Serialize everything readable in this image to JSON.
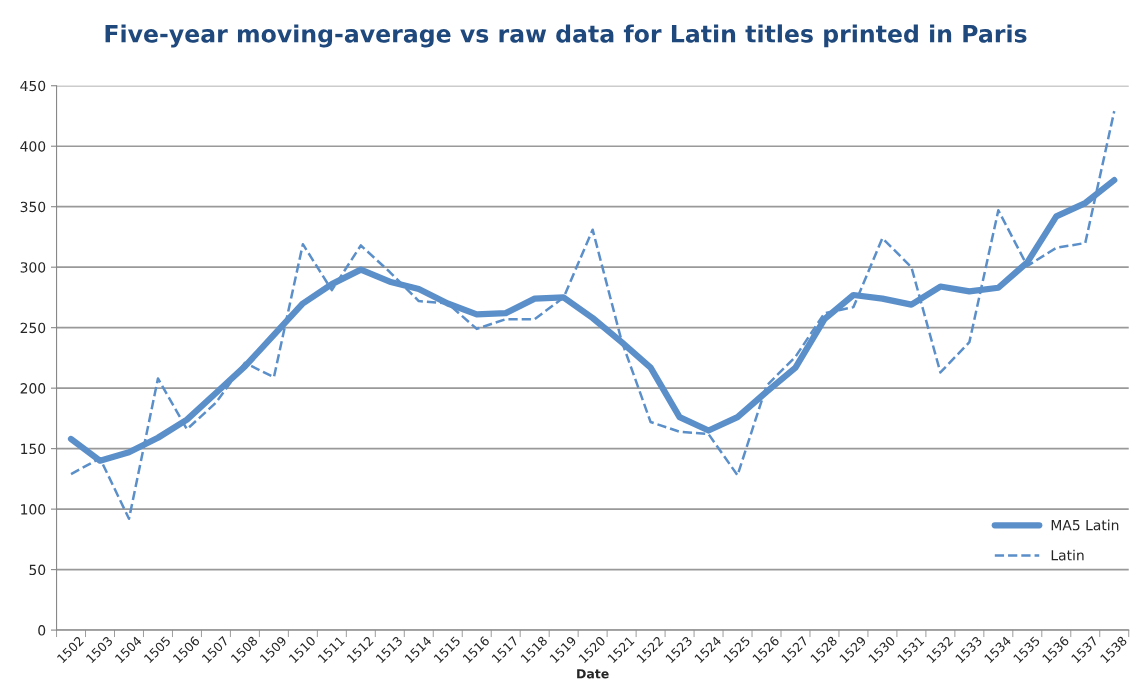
{
  "chart_data": {
    "type": "line",
    "title": "Five-year moving-average vs raw data for Latin titles printed in Paris",
    "xlabel": "Date",
    "categories": [
      "1502",
      "1503",
      "1504",
      "1505",
      "1506",
      "1507",
      "1508",
      "1509",
      "1510",
      "1511",
      "1512",
      "1513",
      "1514",
      "1515",
      "1516",
      "1517",
      "1518",
      "1519",
      "1520",
      "1521",
      "1522",
      "1523",
      "1524",
      "1525",
      "1526",
      "1527",
      "1528",
      "1529",
      "1530",
      "1531",
      "1532",
      "1533",
      "1534",
      "1535",
      "1536",
      "1537",
      "1538"
    ],
    "series": [
      {
        "name": "MA5 Latin",
        "color": "#5b8fc9",
        "line_style": "solid",
        "values": [
          158,
          140,
          147,
          159,
          174,
          196,
          218,
          244,
          270,
          286,
          298,
          288,
          282,
          270,
          261,
          262,
          274,
          275,
          258,
          238,
          217,
          176,
          165,
          176,
          197,
          217,
          257,
          277,
          274,
          269,
          284,
          280,
          283,
          304,
          342,
          353,
          372
        ]
      },
      {
        "name": "Latin",
        "color": "#5b8fc9",
        "line_style": "dashed",
        "values": [
          129,
          142,
          92,
          208,
          166,
          188,
          221,
          209,
          319,
          281,
          318,
          296,
          272,
          270,
          249,
          257,
          257,
          275,
          331,
          239,
          172,
          164,
          162,
          128,
          202,
          226,
          262,
          267,
          324,
          300,
          213,
          238,
          347,
          301,
          316,
          320,
          429
        ]
      }
    ],
    "ylim": [
      0,
      450
    ],
    "yticks": [
      0,
      50,
      100,
      150,
      200,
      250,
      300,
      350,
      400,
      450
    ],
    "grid": "y",
    "legend": "bottom right",
    "marker": "none"
  }
}
